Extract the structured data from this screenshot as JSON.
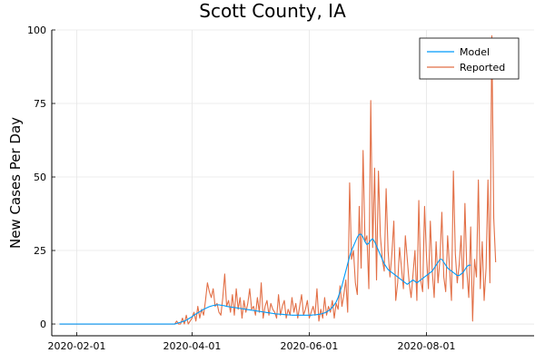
{
  "chart_data": {
    "type": "line",
    "title": "Scott County, IA",
    "xlabel": "",
    "ylabel": "New Cases Per Day",
    "x_start": "2020-01-23",
    "xlim": [
      "2020-01-19",
      "2020-09-26"
    ],
    "ylim": [
      -4,
      100
    ],
    "x_ticks": [
      "2020-02-01",
      "2020-04-01",
      "2020-06-01",
      "2020-08-01"
    ],
    "y_ticks": [
      0,
      25,
      50,
      75,
      100
    ],
    "grid": true,
    "legend_position": "top-right",
    "series": [
      {
        "name": "Model",
        "color": "#009af9",
        "values": [
          0,
          0,
          0,
          0,
          0,
          0,
          0,
          0,
          0,
          0,
          0,
          0,
          0,
          0,
          0,
          0,
          0,
          0,
          0,
          0,
          0,
          0,
          0,
          0,
          0,
          0,
          0,
          0,
          0,
          0,
          0,
          0,
          0,
          0,
          0,
          0,
          0,
          0,
          0,
          0,
          0,
          0,
          0,
          0,
          0,
          0,
          0,
          0,
          0,
          0,
          0,
          0,
          0,
          0,
          0,
          0,
          0,
          0,
          0,
          0,
          0,
          0.2,
          0.4,
          0.6,
          0.8,
          1,
          1.3,
          1.7,
          2.1,
          2.5,
          3,
          3.4,
          3.8,
          4.2,
          4.6,
          5,
          5.3,
          5.6,
          5.9,
          6.1,
          6.3,
          6.4,
          6.5,
          6.5,
          6.4,
          6.3,
          6.2,
          6,
          5.9,
          5.8,
          5.7,
          5.6,
          5.5,
          5.4,
          5.3,
          5.2,
          5.1,
          5,
          4.9,
          4.8,
          4.7,
          4.6,
          4.5,
          4.4,
          4.3,
          4.2,
          4.1,
          4,
          3.9,
          3.8,
          3.7,
          3.6,
          3.5,
          3.4,
          3.4,
          3.3,
          3.3,
          3.2,
          3.2,
          3.1,
          3.1,
          3,
          3,
          3,
          3,
          3,
          3,
          3,
          3,
          3,
          3,
          3,
          3.1,
          3.1,
          3.2,
          3.3,
          3.4,
          3.6,
          3.8,
          4.1,
          4.5,
          5,
          5.7,
          6.5,
          7.5,
          9,
          11,
          13,
          15.5,
          18,
          20.5,
          23,
          25,
          26.5,
          28,
          29.5,
          30.5,
          30.5,
          29.5,
          28,
          27,
          27.5,
          28.5,
          29,
          28,
          26.5,
          25,
          23.5,
          22,
          20.5,
          19.5,
          18.5,
          18,
          17.5,
          17,
          16.5,
          16,
          15.5,
          15,
          14.5,
          14,
          13.5,
          14,
          14.5,
          15,
          14.5,
          14,
          14.5,
          15,
          15.5,
          16,
          16.5,
          17,
          17.5,
          18,
          19,
          20,
          21,
          22,
          22,
          21,
          20,
          19,
          18.5,
          18,
          17.5,
          17,
          16.5,
          16.5,
          17,
          17.5,
          18.5,
          19.5,
          20,
          20
        ]
      },
      {
        "name": "Reported",
        "color": "#e26f46",
        "values": [
          0,
          0,
          0,
          0,
          0,
          0,
          0,
          0,
          0,
          0,
          0,
          0,
          0,
          0,
          0,
          0,
          0,
          0,
          0,
          0,
          0,
          0,
          0,
          0,
          0,
          0,
          0,
          0,
          0,
          0,
          0,
          0,
          0,
          0,
          0,
          0,
          0,
          0,
          0,
          0,
          0,
          0,
          0,
          0,
          0,
          0,
          0,
          0,
          0,
          0,
          0,
          0,
          0,
          0,
          0,
          0,
          0,
          0,
          0,
          0,
          0,
          1,
          0,
          0,
          2,
          0,
          3,
          0,
          1,
          2,
          4,
          1,
          6,
          2,
          5,
          3,
          8,
          14,
          11,
          9,
          12,
          6,
          7,
          4,
          3,
          9,
          17,
          6,
          8,
          4,
          10,
          3,
          12,
          5,
          9,
          2,
          8,
          4,
          7,
          12,
          5,
          6,
          3,
          9,
          4,
          14,
          2,
          6,
          8,
          3,
          7,
          5,
          4,
          2,
          10,
          3,
          6,
          8,
          2,
          5,
          3,
          9,
          4,
          7,
          2,
          6,
          10,
          3,
          5,
          8,
          2,
          4,
          6,
          3,
          12,
          1,
          5,
          2,
          9,
          3,
          6,
          4,
          8,
          2,
          7,
          5,
          13,
          6,
          10,
          15,
          4,
          48,
          22,
          25,
          14,
          10,
          40,
          19,
          59,
          28,
          30,
          12,
          76,
          26,
          53,
          15,
          52,
          30,
          22,
          18,
          46,
          25,
          16,
          24,
          35,
          8,
          14,
          26,
          19,
          12,
          30,
          22,
          14,
          9,
          17,
          25,
          8,
          42,
          15,
          11,
          40,
          23,
          12,
          35,
          18,
          9,
          28,
          14,
          22,
          38,
          16,
          11,
          30,
          19,
          8,
          52,
          24,
          14,
          20,
          30,
          12,
          41,
          18,
          9,
          33,
          1,
          22,
          16,
          49,
          12,
          28,
          8,
          19,
          49,
          14,
          98,
          36,
          21
        ]
      }
    ]
  }
}
